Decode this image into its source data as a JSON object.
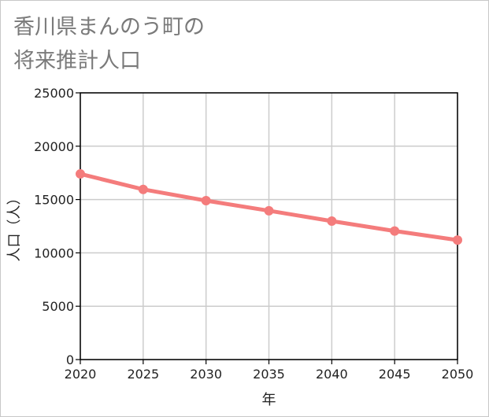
{
  "title": {
    "line1": "香川県まんのう町の",
    "line2": "将来推計人口"
  },
  "chart_data": {
    "type": "line",
    "title": "香川県まんのう町の将来推計人口",
    "xlabel": "年",
    "ylabel": "人口（人）",
    "x": [
      2020,
      2025,
      2030,
      2035,
      2040,
      2045,
      2050
    ],
    "series": [
      {
        "name": "人口",
        "values": [
          17400,
          15950,
          14900,
          13950,
          12980,
          12050,
          11200
        ]
      }
    ],
    "xlim": [
      2020,
      2050
    ],
    "ylim": [
      0,
      25000
    ],
    "yticks": [
      "0",
      "5000",
      "10000",
      "15000",
      "20000",
      "25000"
    ],
    "xticks": [
      "2020",
      "2025",
      "2030",
      "2035",
      "2040",
      "2045",
      "2050"
    ],
    "grid": true,
    "colors": {
      "line": "#f47c7c",
      "grid": "#cccccc",
      "axis": "#000000"
    }
  }
}
